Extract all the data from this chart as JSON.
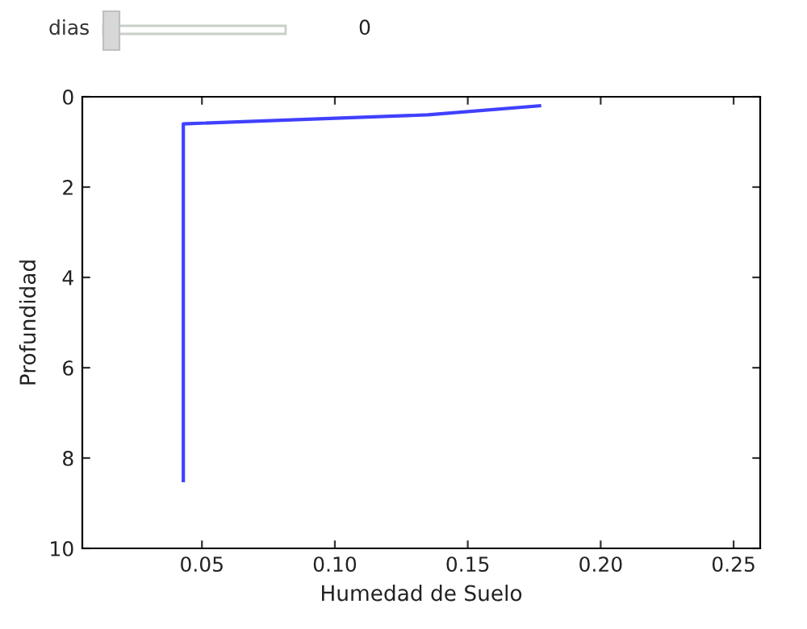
{
  "chart_data": {
    "type": "line",
    "xlabel": "Humedad de Suelo",
    "ylabel": "Profundidad",
    "x": [
      0.177,
      0.135,
      0.043,
      0.043
    ],
    "series": [
      {
        "color": "#4040ff",
        "values": [
          0.2,
          0.4,
          0.6,
          8.5
        ]
      }
    ],
    "xlim": [
      0.005,
      0.26
    ],
    "xticks": [
      {
        "value": 0.05,
        "label": "0.05"
      },
      {
        "value": 0.1,
        "label": "0.10"
      },
      {
        "value": 0.15,
        "label": "0.15"
      },
      {
        "value": 0.2,
        "label": "0.20"
      },
      {
        "value": 0.25,
        "label": "0.25"
      }
    ],
    "ylim": [
      10,
      0
    ],
    "yticks": [
      0,
      2,
      4,
      6,
      8,
      10
    ],
    "grid": false,
    "legend": false,
    "marker": "none",
    "line_style": "solid",
    "annotations": [
      "dias",
      "0"
    ]
  }
}
